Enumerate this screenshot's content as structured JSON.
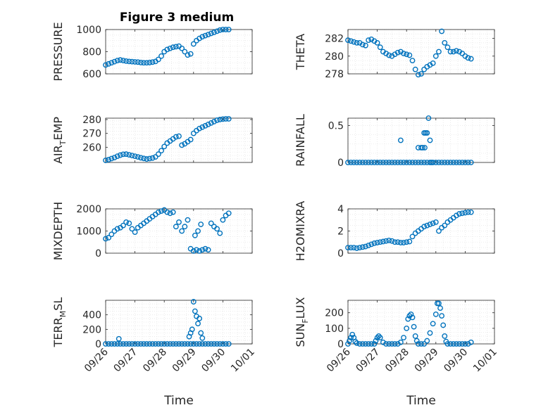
{
  "figure": {
    "title": "Figure 3 medium"
  },
  "colors": {
    "marker": "#0072BD",
    "grid": "#e6e6e6",
    "axis": "#262626"
  },
  "chart_data": [
    {
      "type": "scatter",
      "title": "Figure 3 medium",
      "ylabel": {
        "main": "PRESSURE"
      },
      "ylim": [
        600,
        1000
      ],
      "yticks": [
        "600",
        "800",
        "1000"
      ],
      "xlabel": "",
      "series": [
        {
          "x": [
            0,
            0.1,
            0.2,
            0.3,
            0.4,
            0.5,
            0.6,
            0.7,
            0.8,
            0.9,
            1,
            1.1,
            1.2,
            1.3,
            1.4,
            1.5,
            1.6,
            1.7,
            1.8,
            1.9,
            2,
            2.1,
            2.2,
            2.3,
            2.4,
            2.5,
            2.6,
            2.7,
            2.8,
            2.9,
            3,
            3.1,
            3.2,
            3.3,
            3.4,
            3.5,
            3.6,
            3.7,
            3.8,
            3.9,
            4,
            4.1,
            4.2
          ],
          "y": [
            680,
            690,
            700,
            710,
            720,
            725,
            720,
            715,
            712,
            710,
            708,
            706,
            702,
            700,
            700,
            702,
            706,
            712,
            730,
            760,
            800,
            820,
            830,
            840,
            845,
            850,
            830,
            800,
            770,
            780,
            870,
            900,
            920,
            935,
            945,
            955,
            965,
            975,
            985,
            995,
            1000,
            1000,
            1000
          ]
        }
      ]
    },
    {
      "type": "scatter",
      "ylabel": {
        "main": "THETA"
      },
      "ylim": [
        278,
        283
      ],
      "yticks": [
        "278",
        "280",
        "282"
      ],
      "xlabel": "",
      "series": [
        {
          "x": [
            0,
            0.1,
            0.2,
            0.3,
            0.4,
            0.5,
            0.6,
            0.7,
            0.8,
            0.9,
            1,
            1.1,
            1.2,
            1.3,
            1.4,
            1.5,
            1.6,
            1.7,
            1.8,
            1.9,
            2,
            2.1,
            2.2,
            2.3,
            2.4,
            2.5,
            2.6,
            2.7,
            2.8,
            2.9,
            3,
            3.1,
            3.2,
            3.3,
            3.4,
            3.5,
            3.6,
            3.7,
            3.8,
            3.9,
            4,
            4.1,
            4.2
          ],
          "y": [
            281.8,
            281.7,
            281.6,
            281.5,
            281.5,
            281.3,
            281.2,
            281.8,
            281.9,
            281.7,
            281.5,
            281,
            280.5,
            280.3,
            280.1,
            280,
            280.2,
            280.4,
            280.5,
            280.3,
            280.2,
            280.1,
            279.5,
            278.5,
            277.9,
            278,
            278.5,
            278.8,
            279,
            279.2,
            280,
            280.5,
            282.8,
            281.5,
            281,
            280.5,
            280.5,
            280.6,
            280.5,
            280.3,
            280,
            279.8,
            279.7
          ]
        }
      ]
    },
    {
      "type": "scatter",
      "ylabel": {
        "main": "AIR",
        "sub": "T",
        "rest": "EMP"
      },
      "ylim": [
        249,
        281
      ],
      "yticks": [
        "260",
        "270",
        "280"
      ],
      "xlabel": "",
      "series": [
        {
          "x": [
            0,
            0.1,
            0.2,
            0.3,
            0.4,
            0.5,
            0.6,
            0.7,
            0.8,
            0.9,
            1,
            1.1,
            1.2,
            1.3,
            1.4,
            1.5,
            1.6,
            1.7,
            1.8,
            1.9,
            2,
            2.1,
            2.2,
            2.3,
            2.4,
            2.5,
            2.6,
            2.7,
            2.8,
            2.9,
            3,
            3.1,
            3.2,
            3.3,
            3.4,
            3.5,
            3.6,
            3.7,
            3.8,
            3.9,
            4,
            4.1,
            4.2
          ],
          "y": [
            250.5,
            251,
            251.8,
            252.5,
            253.5,
            254.3,
            254.9,
            255,
            254.5,
            254,
            253.5,
            253,
            252.4,
            251.9,
            251.5,
            251.8,
            252.2,
            253,
            255,
            257.5,
            260.5,
            263,
            264.5,
            266,
            267.5,
            268,
            261.5,
            262.5,
            264,
            265.5,
            270,
            272,
            273.5,
            274.5,
            275.5,
            276.5,
            277.5,
            278.5,
            279.5,
            280,
            280.3,
            280.5,
            280.5
          ]
        }
      ]
    },
    {
      "type": "scatter",
      "ylabel": {
        "main": "RAINFALL"
      },
      "ylim": [
        0,
        0.6
      ],
      "yticks": [
        "0",
        "0.5"
      ],
      "xlabel": "",
      "series": [
        {
          "x": [
            0,
            0.1,
            0.2,
            0.3,
            0.4,
            0.5,
            0.6,
            0.7,
            0.8,
            0.9,
            1,
            1.1,
            1.2,
            1.3,
            1.4,
            1.5,
            1.6,
            1.7,
            1.8,
            1.9,
            2,
            2.1,
            2.2,
            2.3,
            2.4,
            2.5,
            2.6,
            2.7,
            2.8,
            2.9,
            3,
            3.1,
            3.2,
            3.3,
            3.4,
            3.5,
            3.6,
            3.7,
            3.8,
            3.9,
            4,
            4.1,
            4.2,
            1.8,
            2.4,
            2.5,
            2.55,
            2.6,
            2.62,
            2.65,
            2.7,
            2.75,
            2.8,
            2.85
          ],
          "y": [
            0,
            0,
            0,
            0,
            0,
            0,
            0,
            0,
            0,
            0,
            0,
            0,
            0,
            0,
            0,
            0,
            0,
            0,
            0,
            0,
            0,
            0,
            0,
            0,
            0,
            0,
            0,
            0,
            0,
            0,
            0,
            0,
            0,
            0,
            0,
            0,
            0,
            0,
            0,
            0,
            0,
            0,
            0,
            0.3,
            0.2,
            0.2,
            0.2,
            0.4,
            0.2,
            0.4,
            0.4,
            0.6,
            0.3,
            0
          ]
        }
      ]
    },
    {
      "type": "scatter",
      "ylabel": {
        "main": "MIXDEPTH"
      },
      "ylim": [
        0,
        2000
      ],
      "yticks": [
        "0",
        "1000",
        "2000"
      ],
      "xlabel": "",
      "series": [
        {
          "x": [
            0,
            0.1,
            0.2,
            0.3,
            0.4,
            0.5,
            0.6,
            0.7,
            0.8,
            0.9,
            1,
            1.1,
            1.2,
            1.3,
            1.4,
            1.5,
            1.6,
            1.7,
            1.8,
            1.9,
            2,
            2.1,
            2.2,
            2.3,
            2.4,
            2.5,
            2.6,
            2.7,
            2.8,
            2.9,
            3,
            3.1,
            3.2,
            3.3,
            3.4,
            3.5,
            3.6,
            3.7,
            3.8,
            3.9,
            4,
            4.1,
            4.2,
            3.05,
            3.15,
            3.25
          ],
          "y": [
            650,
            700,
            850,
            1000,
            1100,
            1150,
            1250,
            1400,
            1350,
            1100,
            950,
            1150,
            1250,
            1350,
            1450,
            1550,
            1650,
            1750,
            1850,
            1900,
            1950,
            1850,
            1800,
            1850,
            1200,
            1400,
            1000,
            1200,
            1500,
            200,
            100,
            150,
            100,
            150,
            200,
            150,
            1350,
            1200,
            1100,
            900,
            1500,
            1700,
            1800,
            800,
            1000,
            1300
          ]
        }
      ]
    },
    {
      "type": "scatter",
      "ylabel": {
        "main": "H2OMIXRA"
      },
      "ylim": [
        0,
        4
      ],
      "yticks": [
        "0",
        "2",
        "4"
      ],
      "xlabel": "",
      "series": [
        {
          "x": [
            0,
            0.1,
            0.2,
            0.3,
            0.4,
            0.5,
            0.6,
            0.7,
            0.8,
            0.9,
            1,
            1.1,
            1.2,
            1.3,
            1.4,
            1.5,
            1.6,
            1.7,
            1.8,
            1.9,
            2,
            2.1,
            2.2,
            2.3,
            2.4,
            2.5,
            2.6,
            2.7,
            2.8,
            2.9,
            3,
            3.1,
            3.2,
            3.3,
            3.4,
            3.5,
            3.6,
            3.7,
            3.8,
            3.9,
            4,
            4.1,
            4.2
          ],
          "y": [
            0.5,
            0.5,
            0.5,
            0.45,
            0.5,
            0.55,
            0.6,
            0.7,
            0.8,
            0.9,
            0.95,
            1,
            1.05,
            1.1,
            1.15,
            1.1,
            1,
            1,
            0.95,
            0.95,
            1,
            1.05,
            1.5,
            1.8,
            2,
            2.2,
            2.4,
            2.5,
            2.6,
            2.7,
            2.8,
            2,
            2.3,
            2.5,
            2.8,
            3,
            3.2,
            3.4,
            3.55,
            3.6,
            3.65,
            3.7,
            3.7
          ]
        }
      ]
    },
    {
      "type": "scatter",
      "ylabel": {
        "main": "TERR",
        "sub": "M",
        "rest": "SL"
      },
      "ylim": [
        0,
        600
      ],
      "yticks": [
        "0",
        "200",
        "400"
      ],
      "xlabel": "Time",
      "series": [
        {
          "x": [
            0,
            0.1,
            0.2,
            0.3,
            0.4,
            0.5,
            0.6,
            0.7,
            0.8,
            0.9,
            1,
            1.1,
            1.2,
            1.3,
            1.4,
            1.5,
            1.6,
            1.7,
            1.8,
            1.9,
            2,
            2.1,
            2.2,
            2.3,
            2.4,
            2.5,
            2.6,
            2.7,
            2.8,
            2.9,
            3,
            3.1,
            3.2,
            3.3,
            3.4,
            3.5,
            3.6,
            3.7,
            3.8,
            3.9,
            4,
            4.1,
            4.2,
            0.45,
            2.85,
            2.9,
            2.95,
            3.0,
            3.05,
            3.1,
            3.15,
            3.2,
            3.25,
            3.3
          ],
          "y": [
            0,
            0,
            0,
            0,
            0,
            0,
            0,
            0,
            0,
            0,
            0,
            0,
            0,
            0,
            0,
            0,
            0,
            0,
            0,
            0,
            0,
            0,
            0,
            0,
            0,
            0,
            0,
            0,
            0,
            0,
            0,
            0,
            0,
            0,
            0,
            0,
            0,
            0,
            0,
            0,
            0,
            0,
            0,
            70,
            100,
            150,
            200,
            580,
            450,
            380,
            280,
            350,
            150,
            80
          ]
        }
      ]
    },
    {
      "type": "scatter",
      "ylabel": {
        "main": "SUN",
        "sub": "F",
        "rest": "LUX"
      },
      "ylim": [
        0,
        280
      ],
      "yticks": [
        "0",
        "100",
        "200"
      ],
      "xlabel": "Time",
      "series": [
        {
          "x": [
            0,
            0.05,
            0.1,
            0.15,
            0.2,
            0.25,
            0.3,
            0.4,
            0.5,
            0.6,
            0.7,
            0.8,
            0.9,
            0.95,
            1,
            1.05,
            1.1,
            1.2,
            1.3,
            1.4,
            1.5,
            1.6,
            1.7,
            1.8,
            1.9,
            2,
            2.05,
            2.1,
            2.15,
            2.2,
            2.25,
            2.3,
            2.35,
            2.4,
            2.5,
            2.6,
            2.7,
            2.8,
            2.9,
            3,
            3.05,
            3.1,
            3.15,
            3.2,
            3.25,
            3.3,
            3.35,
            3.4,
            3.5,
            3.6,
            3.7,
            3.8,
            3.9,
            4,
            4.1,
            4.2
          ],
          "y": [
            0,
            20,
            40,
            60,
            40,
            15,
            5,
            0,
            0,
            0,
            0,
            0,
            0,
            20,
            40,
            50,
            40,
            10,
            0,
            0,
            0,
            0,
            0,
            10,
            40,
            100,
            160,
            180,
            190,
            170,
            110,
            50,
            20,
            0,
            0,
            0,
            20,
            70,
            130,
            190,
            260,
            260,
            230,
            180,
            120,
            50,
            15,
            0,
            0,
            0,
            0,
            0,
            0,
            0,
            0,
            10
          ]
        }
      ]
    }
  ],
  "x_axis": {
    "ticks": [
      "09/26",
      "09/27",
      "09/28",
      "09/29",
      "09/30",
      "10/01"
    ],
    "tick_values": [
      0,
      1,
      2,
      3,
      4,
      5
    ],
    "range": [
      0,
      5
    ]
  }
}
